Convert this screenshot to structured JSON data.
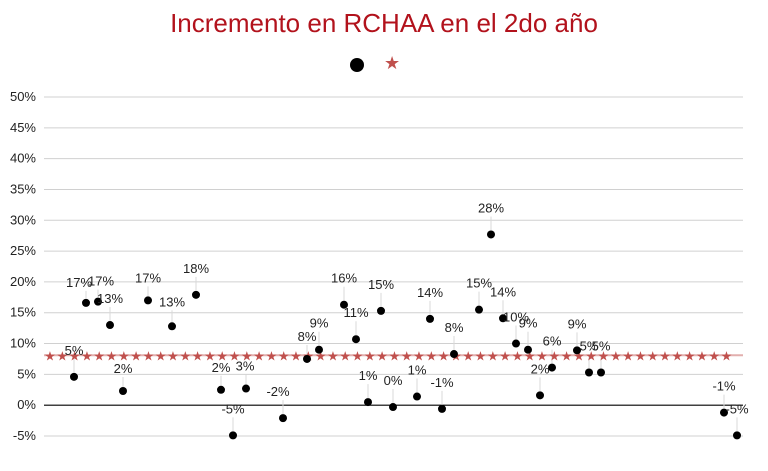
{
  "chart_data": {
    "type": "scatter",
    "title": "Incremento en RCHAA en el 2do año",
    "ylim": [
      -5,
      50
    ],
    "yticks": [
      "50%",
      "45%",
      "40%",
      "35%",
      "30%",
      "25%",
      "20%",
      "15%",
      "10%",
      "5%",
      "0%",
      "-5%"
    ],
    "grid": true,
    "legend": "top-center",
    "colors": {
      "title": "#b2121c",
      "points": "#000000",
      "reference": "#c0504d",
      "grid": "#d0d0d0"
    },
    "series": [
      {
        "marker": "circle",
        "values": [
          4.6,
          16.6,
          16.8,
          13.0,
          2.3,
          17.0,
          12.8,
          17.9,
          2.5,
          -4.9,
          2.7,
          -2.1,
          7.5,
          9.0,
          16.3,
          10.7,
          0.5,
          15.3,
          -0.3,
          1.4,
          14.0,
          -0.6,
          8.3,
          27.7,
          15.5,
          14.1,
          10.0,
          9.0,
          1.6,
          6.1,
          8.9,
          5.3,
          5.3,
          -1.2,
          -4.9
        ],
        "labels": [
          "5%",
          "17%",
          "17%",
          "13%",
          "2%",
          "17%",
          "13%",
          "18%",
          "2%",
          "-5%",
          "3%",
          "-2%",
          "8%",
          "9%",
          "16%",
          "11%",
          "1%",
          "15%",
          "0%",
          "1%",
          "14%",
          "-1%",
          "8%",
          "28%",
          "15%",
          "14%",
          "10%",
          "9%",
          "2%",
          "6%",
          "9%",
          "5%",
          "5%",
          "-1%",
          "-5%"
        ]
      },
      {
        "marker": "star",
        "value": 8.1
      }
    ]
  },
  "legend_items": [
    {
      "icon": "black-dot-icon"
    },
    {
      "icon": "red-star-icon"
    }
  ]
}
